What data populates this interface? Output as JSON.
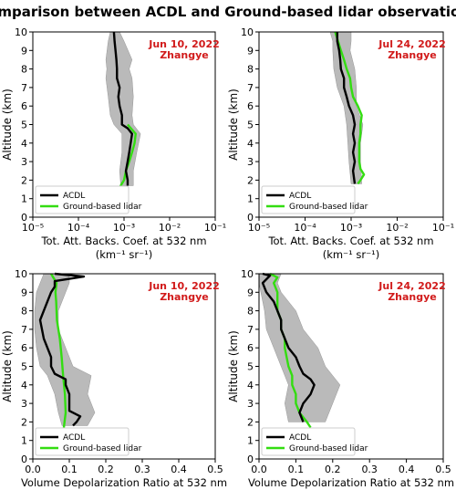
{
  "figure_title": "Comparison between ACDL and Ground-based lidar observations",
  "legend_labels": [
    "ACDL",
    "Ground-based lidar"
  ],
  "colors": {
    "acdl": "#000000",
    "ground": "#33dd11",
    "band": "#b3b3b3",
    "annotation": "#d11a1a"
  },
  "chart_data": [
    {
      "type": "line",
      "panel": "top-left",
      "annotation": [
        "Jun 10, 2022",
        "Zhangye"
      ],
      "ylabel": "Altitude (km)",
      "xlabel": "Tot. Att. Backs. Coef. at 532 nm",
      "xunits": "(km⁻¹ sr⁻¹)",
      "xscale": "log",
      "xlim": [
        1e-05,
        0.1
      ],
      "xticks": [
        "10⁻⁵",
        "10⁻⁴",
        "10⁻³",
        "10⁻²",
        "10⁻¹"
      ],
      "ylim": [
        0,
        10
      ],
      "yticks": [
        "0",
        "1",
        "2",
        "3",
        "4",
        "5",
        "6",
        "7",
        "8",
        "9",
        "10"
      ],
      "legend_position": "lower-left",
      "series": [
        {
          "name": "ACDL",
          "y": [
            1.7,
            2.0,
            2.5,
            3.0,
            3.5,
            4.0,
            4.5,
            4.8,
            5.0,
            5.5,
            6.0,
            6.5,
            7.0,
            7.5,
            8.0,
            8.5,
            9.0,
            9.5,
            10.0
          ],
          "x": [
            0.0012,
            0.0012,
            0.0011,
            0.0012,
            0.0013,
            0.0014,
            0.0015,
            0.0012,
            0.0009,
            0.0009,
            0.0008,
            0.00075,
            0.0008,
            0.0007,
            0.0007,
            0.00068,
            0.00065,
            0.00062,
            0.0006
          ]
        },
        {
          "name": "Ground-based lidar",
          "y": [
            1.6,
            2.0,
            2.5,
            3.0,
            3.5,
            4.0,
            4.5,
            5.0
          ],
          "x": [
            0.0008,
            0.001,
            0.0011,
            0.0013,
            0.0015,
            0.0017,
            0.0018,
            0.0012
          ]
        }
      ],
      "band": {
        "y": [
          1.7,
          2.5,
          3.5,
          4.5,
          5.0,
          5.5,
          6.5,
          7.5,
          8.0,
          8.5,
          9.5,
          10.0
        ],
        "low": [
          0.00085,
          0.0008,
          0.0009,
          0.0009,
          0.0006,
          0.0005,
          0.00045,
          0.0004,
          0.00042,
          0.0004,
          0.00045,
          0.0005
        ],
        "high": [
          0.0016,
          0.0016,
          0.0019,
          0.0023,
          0.0016,
          0.0015,
          0.0016,
          0.0015,
          0.0013,
          0.0015,
          0.001,
          0.0008
        ]
      }
    },
    {
      "type": "line",
      "panel": "top-right",
      "annotation": [
        "Jul 24, 2022",
        "Zhangye"
      ],
      "ylabel": "Altitude (km)",
      "xlabel": "Tot. Att. Backs. Coef. at 532 nm",
      "xunits": "(km⁻¹ sr⁻¹)",
      "xscale": "log",
      "xlim": [
        1e-05,
        0.1
      ],
      "xticks": [
        "10⁻⁵",
        "10⁻⁴",
        "10⁻³",
        "10⁻²",
        "10⁻¹"
      ],
      "ylim": [
        0,
        10
      ],
      "yticks": [
        "0",
        "1",
        "2",
        "3",
        "4",
        "5",
        "6",
        "7",
        "8",
        "9",
        "10"
      ],
      "legend_position": "lower-left",
      "series": [
        {
          "name": "ACDL",
          "y": [
            1.8,
            2.5,
            3.0,
            3.5,
            4.0,
            4.5,
            5.0,
            5.5,
            6.0,
            6.5,
            7.0,
            7.5,
            8.0,
            8.5,
            9.0,
            9.5,
            10.0
          ],
          "x": [
            0.0012,
            0.0011,
            0.0012,
            0.0011,
            0.0012,
            0.0011,
            0.0012,
            0.0011,
            0.0009,
            0.0008,
            0.0007,
            0.0007,
            0.0006,
            0.00058,
            0.00055,
            0.0005,
            0.0005
          ]
        },
        {
          "name": "Ground-based lidar",
          "y": [
            1.8,
            2.0,
            2.3,
            2.6,
            3.0,
            3.5,
            4.0,
            4.5,
            5.0,
            5.5,
            6.0,
            6.5,
            7.0,
            7.5,
            8.0,
            8.5,
            9.0,
            9.5,
            10.0
          ],
          "x": [
            0.0014,
            0.0016,
            0.0019,
            0.0016,
            0.0015,
            0.0015,
            0.0015,
            0.0016,
            0.0016,
            0.0017,
            0.0014,
            0.0011,
            0.001,
            0.00095,
            0.0008,
            0.0007,
            0.0006,
            0.00052,
            0.00045
          ]
        }
      ],
      "band": {
        "y": [
          1.8,
          3.0,
          4.0,
          5.0,
          6.0,
          7.0,
          8.0,
          9.0,
          9.5,
          10.0
        ],
        "low": [
          0.001,
          0.0009,
          0.00085,
          0.0008,
          0.0007,
          0.0005,
          0.00042,
          0.0004,
          0.0004,
          0.00035
        ],
        "high": [
          0.0017,
          0.0016,
          0.0016,
          0.0018,
          0.0013,
          0.0013,
          0.0012,
          0.00095,
          0.001,
          0.001
        ]
      }
    },
    {
      "type": "line",
      "panel": "bottom-left",
      "annotation": [
        "Jun 10, 2022",
        "Zhangye"
      ],
      "ylabel": "Altitude (km)",
      "xlabel": "Volume Depolarization Ratio at 532 nm",
      "xscale": "linear",
      "xlim": [
        0,
        0.5
      ],
      "xticks": [
        "0.0",
        "0.1",
        "0.2",
        "0.3",
        "0.4",
        "0.5"
      ],
      "ylim": [
        0,
        10
      ],
      "yticks": [
        "0",
        "1",
        "2",
        "3",
        "4",
        "5",
        "6",
        "7",
        "8",
        "9",
        "10"
      ],
      "legend_position": "lower-left",
      "series": [
        {
          "name": "ACDL",
          "y": [
            1.8,
            2.0,
            2.3,
            2.6,
            3.0,
            3.5,
            4.0,
            4.3,
            4.6,
            5.0,
            5.5,
            6.0,
            6.5,
            7.0,
            7.5,
            8.0,
            8.5,
            9.0,
            9.3,
            9.6,
            9.85,
            10.0
          ],
          "x": [
            0.11,
            0.12,
            0.13,
            0.1,
            0.1,
            0.1,
            0.09,
            0.09,
            0.06,
            0.05,
            0.05,
            0.04,
            0.03,
            0.025,
            0.02,
            0.03,
            0.04,
            0.05,
            0.06,
            0.06,
            0.14,
            0.06
          ]
        },
        {
          "name": "Ground-based lidar",
          "y": [
            1.7,
            2.5,
            3.5,
            4.5,
            5.5,
            6.5,
            7.5,
            8.5,
            9.0,
            9.5,
            10.0
          ],
          "x": [
            0.085,
            0.09,
            0.088,
            0.083,
            0.079,
            0.074,
            0.066,
            0.064,
            0.062,
            0.065,
            0.05
          ]
        }
      ],
      "band": {
        "y": [
          1.8,
          2.5,
          3.5,
          4.5,
          5.0,
          6.0,
          7.0,
          8.0,
          9.0,
          9.5,
          10.0
        ],
        "low": [
          0.08,
          0.07,
          0.06,
          0.04,
          0.02,
          0.01,
          0.005,
          0.005,
          0.01,
          0.02,
          0.03
        ],
        "high": [
          0.15,
          0.17,
          0.15,
          0.16,
          0.11,
          0.09,
          0.07,
          0.07,
          0.09,
          0.1,
          0.1
        ]
      }
    },
    {
      "type": "line",
      "panel": "bottom-right",
      "annotation": [
        "Jul 24, 2022",
        "Zhangye"
      ],
      "ylabel": "Altitude (km)",
      "xlabel": "Volume Depolarization Ratio at 532 nm",
      "xscale": "linear",
      "xlim": [
        0,
        0.5
      ],
      "xticks": [
        "0.0",
        "0.1",
        "0.2",
        "0.3",
        "0.4",
        "0.5"
      ],
      "ylim": [
        0,
        10
      ],
      "yticks": [
        "0",
        "1",
        "2",
        "3",
        "4",
        "5",
        "6",
        "7",
        "8",
        "9",
        "10"
      ],
      "legend_position": "lower-left",
      "series": [
        {
          "name": "ACDL",
          "y": [
            2.0,
            2.5,
            3.0,
            3.5,
            4.0,
            4.3,
            4.6,
            5.0,
            5.5,
            6.0,
            6.5,
            7.0,
            7.5,
            8.0,
            8.5,
            9.0,
            9.5,
            9.9,
            10.0
          ],
          "x": [
            0.12,
            0.11,
            0.12,
            0.14,
            0.15,
            0.14,
            0.12,
            0.11,
            0.1,
            0.08,
            0.07,
            0.06,
            0.06,
            0.05,
            0.04,
            0.02,
            0.01,
            0.03,
            0.01
          ]
        },
        {
          "name": "Ground-based lidar",
          "y": [
            1.7,
            2.0,
            2.5,
            3.0,
            3.5,
            4.0,
            4.5,
            5.0,
            5.5,
            6.0,
            6.5,
            7.0,
            7.5,
            8.0,
            8.5,
            9.0,
            9.5,
            9.8,
            10.0
          ],
          "x": [
            0.14,
            0.13,
            0.11,
            0.1,
            0.1,
            0.09,
            0.09,
            0.08,
            0.075,
            0.07,
            0.07,
            0.06,
            0.06,
            0.05,
            0.05,
            0.05,
            0.04,
            0.05,
            0.03
          ]
        }
      ],
      "band": {
        "y": [
          2.0,
          3.0,
          4.0,
          5.0,
          6.0,
          7.0,
          8.0,
          9.0,
          9.5,
          10.0
        ],
        "low": [
          0.08,
          0.07,
          0.08,
          0.06,
          0.04,
          0.02,
          0.015,
          0.005,
          0.0,
          0.0
        ],
        "high": [
          0.18,
          0.2,
          0.22,
          0.18,
          0.16,
          0.12,
          0.1,
          0.06,
          0.05,
          0.06
        ]
      }
    }
  ]
}
